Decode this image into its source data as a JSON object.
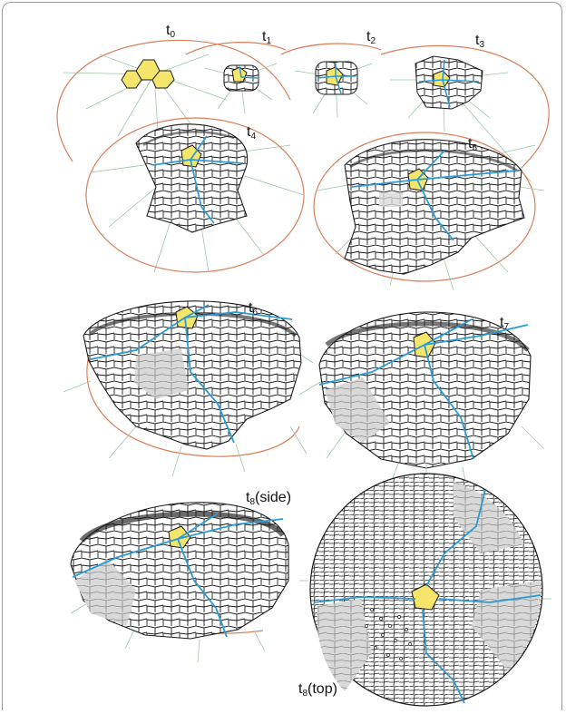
{
  "figure": {
    "stages": [
      {
        "id": "t0",
        "label": "t",
        "sub": "0",
        "suffix": ""
      },
      {
        "id": "t1",
        "label": "t",
        "sub": "1",
        "suffix": ""
      },
      {
        "id": "t2",
        "label": "t",
        "sub": "2",
        "suffix": ""
      },
      {
        "id": "t3",
        "label": "t",
        "sub": "3",
        "suffix": ""
      },
      {
        "id": "t4",
        "label": "t",
        "sub": "4",
        "suffix": ""
      },
      {
        "id": "t5",
        "label": "t",
        "sub": "5",
        "suffix": ""
      },
      {
        "id": "t6",
        "label": "t",
        "sub": "6",
        "suffix": ""
      },
      {
        "id": "t7",
        "label": "t",
        "sub": "7",
        "suffix": ""
      },
      {
        "id": "t8side",
        "label": "t",
        "sub": "8",
        "suffix": "(side)"
      },
      {
        "id": "t8top",
        "label": "t",
        "sub": "8",
        "suffix": "(top)"
      }
    ],
    "colors": {
      "cell_edge": "#1a1a1a",
      "cell_fill": "#ffffff",
      "initial_cells": "#f5e56b",
      "clone_boundary": "#2a9bd4",
      "shaded_sector": "#d9d9d9",
      "dome_outline": "#d9805a",
      "guide_lines": "#9fc7a8"
    }
  }
}
